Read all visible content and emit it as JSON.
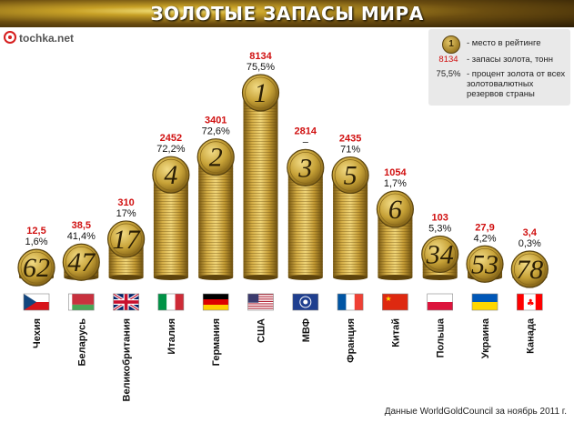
{
  "header": {
    "title": "ЗОЛОТЫЕ ЗАПАСЫ МИРА"
  },
  "logo": {
    "text": "tochka.net"
  },
  "legend": {
    "rank_coin": "1",
    "rank_desc": "- место в рейтинге",
    "tonnes_key": "8134",
    "tonnes_desc": "- запасы золота, тонн",
    "pct_key": "75,5%",
    "pct_desc": "- процент золота от всех золотовалютных резервов страны"
  },
  "source": "Данные WorldGoldCouncil за ноябрь 2011 г.",
  "colors": {
    "header_gold": "#c9a227",
    "tonnes_red": "#d01010",
    "coin_gold": "#c7a237",
    "legend_bg": "#e9e9e9"
  },
  "chart_data": {
    "type": "bar",
    "title": "ЗОЛОТЫЕ ЗАПАСЫ МИРА",
    "categories": [
      "Чехия",
      "Беларусь",
      "Великобритания",
      "Италия",
      "Германия",
      "США",
      "МВФ",
      "Франция",
      "Китай",
      "Польша",
      "Украина",
      "Канада"
    ],
    "series": [
      {
        "name": "запасы золота, тонн",
        "values": [
          12.5,
          38.5,
          310,
          2452,
          3401,
          8134,
          2814,
          2435,
          1054,
          103,
          27.9,
          3.4
        ]
      }
    ],
    "tonnes_labels": [
      "12,5",
      "38,5",
      "310",
      "2452",
      "3401",
      "8134",
      "2814",
      "2435",
      "1054",
      "103",
      "27,9",
      "3,4"
    ],
    "percent_labels": [
      "1,6%",
      "41,4%",
      "17%",
      "72,2%",
      "72,6%",
      "75,5%",
      "–",
      "71%",
      "1,7%",
      "5,3%",
      "4,2%",
      "0,3%"
    ],
    "ranks": [
      "62",
      "47",
      "17",
      "4",
      "2",
      "1",
      "3",
      "5",
      "6",
      "34",
      "53",
      "78"
    ],
    "flag_icons": [
      "czech-flag-icon",
      "belarus-flag-icon",
      "uk-flag-icon",
      "italy-flag-icon",
      "germany-flag-icon",
      "usa-flag-icon",
      "imf-flag-icon",
      "france-flag-icon",
      "china-flag-icon",
      "poland-flag-icon",
      "ukraine-flag-icon",
      "canada-flag-icon"
    ]
  }
}
